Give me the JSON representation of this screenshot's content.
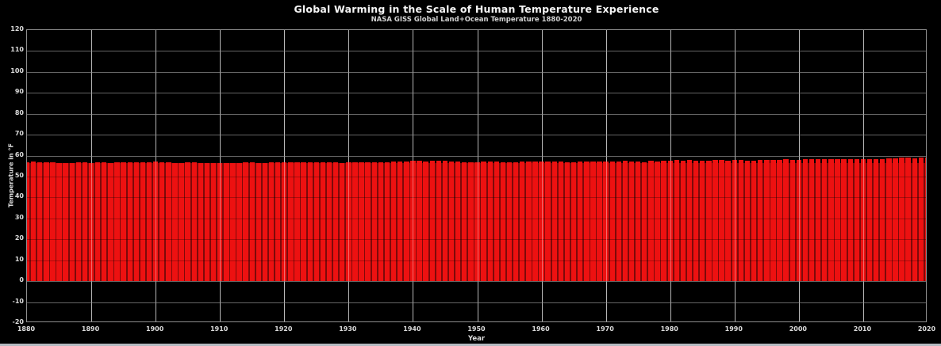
{
  "chart_data": {
    "type": "bar",
    "title": "Global Warming in the Scale of Human Temperature Experience",
    "subtitle": "NASA GISS Global Land+Ocean Temperature 1880-2020",
    "xlabel": "Year",
    "ylabel": "Temperature in °F",
    "xlim": [
      1880,
      2020
    ],
    "ylim": [
      -20,
      120
    ],
    "x_ticks": [
      1880,
      1890,
      1900,
      1910,
      1920,
      1930,
      1940,
      1950,
      1960,
      1970,
      1980,
      1990,
      2000,
      2010,
      2020
    ],
    "y_ticks": [
      -20,
      -10,
      0,
      10,
      20,
      30,
      40,
      50,
      60,
      70,
      80,
      90,
      100,
      110,
      120
    ],
    "grid": true,
    "legend": false,
    "x": [
      1880,
      1881,
      1882,
      1883,
      1884,
      1885,
      1886,
      1887,
      1888,
      1889,
      1890,
      1891,
      1892,
      1893,
      1894,
      1895,
      1896,
      1897,
      1898,
      1899,
      1900,
      1901,
      1902,
      1903,
      1904,
      1905,
      1906,
      1907,
      1908,
      1909,
      1910,
      1911,
      1912,
      1913,
      1914,
      1915,
      1916,
      1917,
      1918,
      1919,
      1920,
      1921,
      1922,
      1923,
      1924,
      1925,
      1926,
      1927,
      1928,
      1929,
      1930,
      1931,
      1932,
      1933,
      1934,
      1935,
      1936,
      1937,
      1938,
      1939,
      1940,
      1941,
      1942,
      1943,
      1944,
      1945,
      1946,
      1947,
      1948,
      1949,
      1950,
      1951,
      1952,
      1953,
      1954,
      1955,
      1956,
      1957,
      1958,
      1959,
      1960,
      1961,
      1962,
      1963,
      1964,
      1965,
      1966,
      1967,
      1968,
      1969,
      1970,
      1971,
      1972,
      1973,
      1974,
      1975,
      1976,
      1977,
      1978,
      1979,
      1980,
      1981,
      1982,
      1983,
      1984,
      1985,
      1986,
      1987,
      1988,
      1989,
      1990,
      1991,
      1992,
      1993,
      1994,
      1995,
      1996,
      1997,
      1998,
      1999,
      2000,
      2001,
      2002,
      2003,
      2004,
      2005,
      2006,
      2007,
      2008,
      2009,
      2010,
      2011,
      2012,
      2013,
      2014,
      2015,
      2016,
      2017,
      2018,
      2019,
      2020
    ],
    "values": [
      56.9,
      57.1,
      57.0,
      56.9,
      56.7,
      56.6,
      56.6,
      56.6,
      56.9,
      57.0,
      56.6,
      56.8,
      56.7,
      56.6,
      56.7,
      56.8,
      57.0,
      57.0,
      56.7,
      56.9,
      57.1,
      56.9,
      56.7,
      56.5,
      56.4,
      56.7,
      56.8,
      56.5,
      56.4,
      56.3,
      56.4,
      56.4,
      56.6,
      56.6,
      56.9,
      56.9,
      56.6,
      56.4,
      56.7,
      56.7,
      56.7,
      56.9,
      56.7,
      56.7,
      56.7,
      56.8,
      57.0,
      56.8,
      56.8,
      56.6,
      56.9,
      57.0,
      56.9,
      56.7,
      57.0,
      56.8,
      56.9,
      57.1,
      57.2,
      57.2,
      57.4,
      57.5,
      57.3,
      57.4,
      57.6,
      57.4,
      57.1,
      57.1,
      57.0,
      57.0,
      56.9,
      57.1,
      57.2,
      57.3,
      57.0,
      56.9,
      56.9,
      57.3,
      57.3,
      57.3,
      57.1,
      57.3,
      57.3,
      57.3,
      56.8,
      57.0,
      57.1,
      57.2,
      57.1,
      57.3,
      57.3,
      57.1,
      57.2,
      57.5,
      57.1,
      57.2,
      57.0,
      57.5,
      57.3,
      57.5,
      57.7,
      57.8,
      57.5,
      57.8,
      57.5,
      57.4,
      57.5,
      57.8,
      57.9,
      57.7,
      58.0,
      57.9,
      57.6,
      57.6,
      57.8,
      58.0,
      57.8,
      58.0,
      58.3,
      57.9,
      57.9,
      58.2,
      58.3,
      58.3,
      58.2,
      58.4,
      58.4,
      58.4,
      58.2,
      58.4,
      58.5,
      58.3,
      58.4,
      58.4,
      58.6,
      58.8,
      59.0,
      58.9,
      58.7,
      59.0,
      59.0
    ],
    "colors": {
      "background": "#000000",
      "bar_fill": "#ed1111",
      "bar_gap": "#7d0a0a",
      "gridline": "#8c8c8c",
      "text": "#dcdcdc",
      "title_text": "#f5f5f5"
    }
  }
}
